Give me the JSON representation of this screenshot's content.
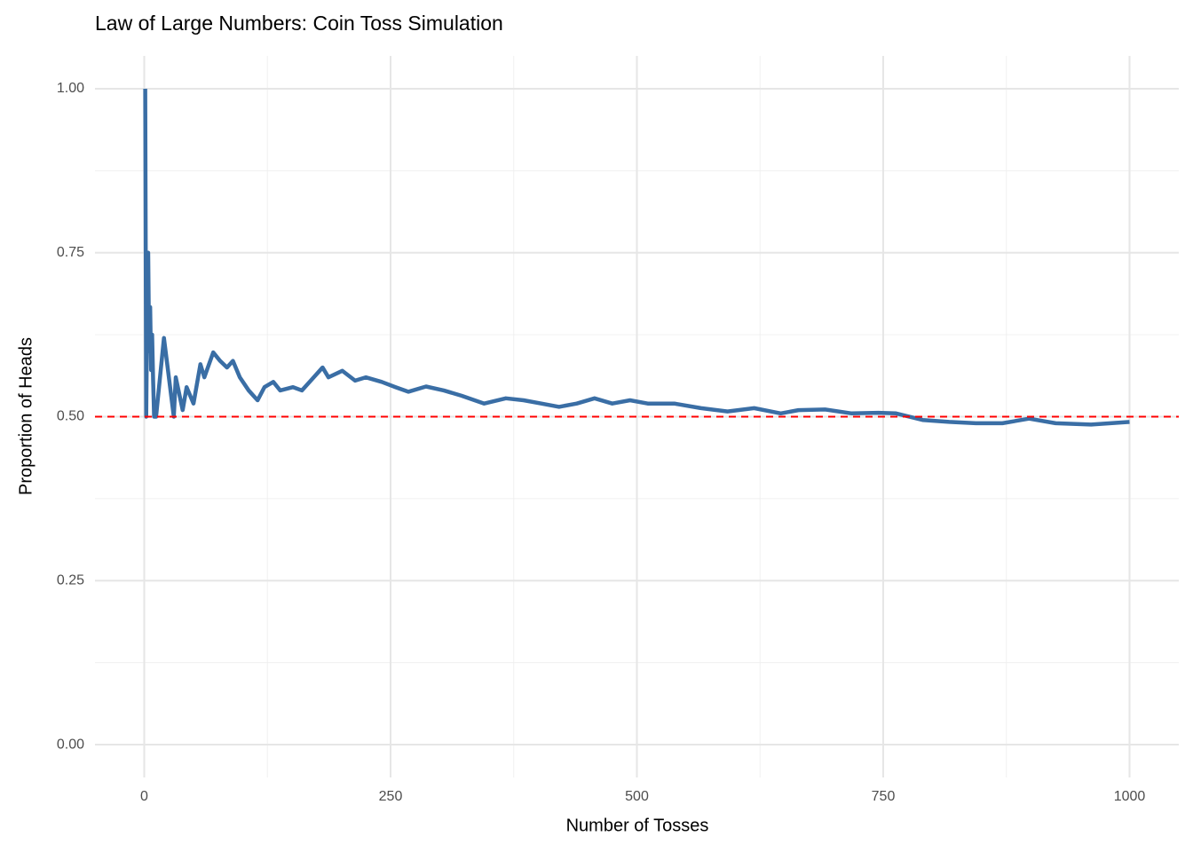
{
  "chart_data": {
    "type": "line",
    "title": "Law of Large Numbers: Coin Toss Simulation",
    "xlabel": "Number of Tosses",
    "ylabel": "Proportion of Heads",
    "x": [
      1,
      2,
      3,
      4,
      5,
      6,
      7,
      8,
      9,
      10,
      12,
      20,
      30,
      32,
      39,
      43,
      50,
      57,
      61,
      70,
      77,
      84,
      90,
      97,
      106,
      115,
      122,
      131,
      138,
      151,
      160,
      169,
      181,
      187,
      201,
      214,
      225,
      241,
      255,
      268,
      286,
      304,
      322,
      345,
      367,
      385,
      403,
      421,
      439,
      457,
      475,
      493,
      511,
      538,
      565,
      592,
      619,
      646,
      664,
      691,
      718,
      745,
      763,
      790,
      817,
      844,
      871,
      898,
      925,
      961,
      1000
    ],
    "series": [
      {
        "name": "Proportion of Heads",
        "color": "#3a6ea5",
        "values": [
          1,
          0.5,
          0.667,
          0.75,
          0.6,
          0.667,
          0.571,
          0.625,
          0.556,
          0.5,
          0.5,
          0.62,
          0.5,
          0.56,
          0.51,
          0.545,
          0.52,
          0.58,
          0.56,
          0.598,
          0.585,
          0.575,
          0.585,
          0.56,
          0.54,
          0.525,
          0.545,
          0.553,
          0.54,
          0.545,
          0.54,
          0.555,
          0.575,
          0.56,
          0.57,
          0.555,
          0.56,
          0.553,
          0.545,
          0.538,
          0.546,
          0.54,
          0.532,
          0.52,
          0.528,
          0.525,
          0.52,
          0.515,
          0.52,
          0.528,
          0.52,
          0.525,
          0.52,
          0.52,
          0.513,
          0.508,
          0.513,
          0.505,
          0.51,
          0.511,
          0.505,
          0.506,
          0.505,
          0.495,
          0.492,
          0.49,
          0.49,
          0.497,
          0.49,
          0.488,
          0.492
        ]
      }
    ],
    "hline": {
      "value": 0.5,
      "color": "#ff0000"
    },
    "xlim": [
      -50,
      1050
    ],
    "ylim": [
      -0.05,
      1.05
    ],
    "xticks": [
      0,
      250,
      500,
      750,
      1000
    ],
    "yticks": [
      {
        "value": 0,
        "label": "0.00"
      },
      {
        "value": 0.25,
        "label": "0.25"
      },
      {
        "value": 0.5,
        "label": "0.50"
      },
      {
        "value": 0.75,
        "label": "0.75"
      },
      {
        "value": 1,
        "label": "1.00"
      }
    ],
    "x_minor_ticks": [
      125,
      375,
      625,
      875
    ],
    "y_minor_ticks": [
      0.125,
      0.375,
      0.625,
      0.875
    ],
    "grid": true
  }
}
